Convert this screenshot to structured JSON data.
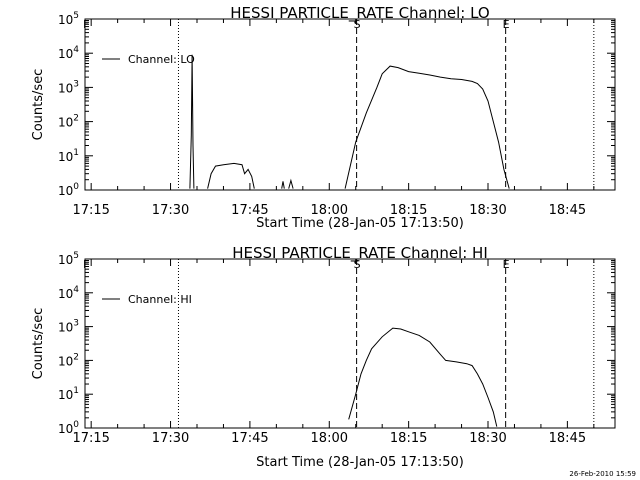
{
  "footer": {
    "timestamp": "26-Feb-2010 15:59"
  },
  "chart_data": [
    {
      "type": "line",
      "title": "HESSI PARTICLE_RATE Channel: LO",
      "xlabel": "Start Time (28-Jan-05 17:13:50)",
      "ylabel": "Counts/sec",
      "x_ticks": [
        "17:15",
        "17:30",
        "17:45",
        "18:00",
        "18:15",
        "18:30",
        "18:45"
      ],
      "y_scale": "log",
      "y_ticks": [
        "10^0",
        "10^1",
        "10^2",
        "10^3",
        "10^4",
        "10^5"
      ],
      "xlim": [
        "17:13:50",
        "18:54:00"
      ],
      "ylim": [
        1,
        100000
      ],
      "legend": {
        "position": "top-left",
        "label": "Channel: LO"
      },
      "markers": [
        {
          "time": "17:31:30",
          "style": "dotted",
          "label": ""
        },
        {
          "time": "18:05:10",
          "style": "dashed",
          "label": "S"
        },
        {
          "time": "18:33:20",
          "style": "dashed",
          "label": "E"
        },
        {
          "time": "18:50:00",
          "style": "dotted",
          "label": ""
        }
      ],
      "corner_label": "F",
      "series": [
        {
          "name": "Channel: LO",
          "segments": [
            [
              [
                "17:33:40",
                1.1
              ],
              [
                "17:33:55",
                40
              ],
              [
                "17:34:05",
                9000
              ],
              [
                "17:34:15",
                20
              ],
              [
                "17:34:25",
                1.1
              ]
            ],
            [
              [
                "17:37:00",
                1.1
              ],
              [
                "17:37:40",
                3
              ],
              [
                "17:38:30",
                5
              ],
              [
                "17:40:00",
                5.5
              ],
              [
                "17:42:00",
                6
              ],
              [
                "17:43:30",
                5.5
              ],
              [
                "17:44:00",
                3
              ],
              [
                "17:44:40",
                4
              ],
              [
                "17:45:20",
                2.5
              ],
              [
                "17:45:50",
                1.1
              ]
            ],
            [
              [
                "17:51:00",
                1.1
              ],
              [
                "17:51:15",
                1.8
              ],
              [
                "17:51:30",
                1.1
              ]
            ],
            [
              [
                "17:52:20",
                1.1
              ],
              [
                "17:52:45",
                1.9
              ],
              [
                "17:53:10",
                1.1
              ]
            ],
            [
              [
                "18:03:00",
                1.1
              ],
              [
                "18:05:00",
                25
              ],
              [
                "18:07:00",
                180
              ],
              [
                "18:09:00",
                1000
              ],
              [
                "18:10:00",
                2500
              ],
              [
                "18:11:30",
                4200
              ],
              [
                "18:13:00",
                3800
              ],
              [
                "18:15:00",
                2900
              ],
              [
                "18:17:00",
                2600
              ],
              [
                "18:19:00",
                2300
              ],
              [
                "18:21:00",
                2000
              ],
              [
                "18:23:00",
                1800
              ],
              [
                "18:25:00",
                1700
              ],
              [
                "18:27:00",
                1500
              ],
              [
                "18:28:00",
                1300
              ],
              [
                "18:29:00",
                900
              ],
              [
                "18:30:00",
                400
              ],
              [
                "18:31:00",
                100
              ],
              [
                "18:32:00",
                25
              ],
              [
                "18:33:00",
                4
              ],
              [
                "18:34:00",
                1.1
              ]
            ]
          ]
        }
      ]
    },
    {
      "type": "line",
      "title": "HESSI PARTICLE_RATE Channel: HI",
      "xlabel": "Start Time (28-Jan-05 17:13:50)",
      "ylabel": "Counts/sec",
      "x_ticks": [
        "17:15",
        "17:30",
        "17:45",
        "18:00",
        "18:15",
        "18:30",
        "18:45"
      ],
      "y_scale": "log",
      "y_ticks": [
        "10^0",
        "10^1",
        "10^2",
        "10^3",
        "10^4",
        "10^5"
      ],
      "xlim": [
        "17:13:50",
        "18:54:00"
      ],
      "ylim": [
        1,
        100000
      ],
      "legend": {
        "position": "top-left",
        "label": "Channel: HI"
      },
      "markers": [
        {
          "time": "17:31:30",
          "style": "dotted",
          "label": ""
        },
        {
          "time": "18:05:10",
          "style": "dashed",
          "label": "S"
        },
        {
          "time": "18:33:20",
          "style": "dashed",
          "label": "E"
        },
        {
          "time": "18:50:00",
          "style": "dotted",
          "label": ""
        }
      ],
      "corner_label": "F",
      "series": [
        {
          "name": "Channel: HI",
          "segments": [
            [
              [
                "18:03:40",
                1.8
              ],
              [
                "18:05:00",
                10
              ],
              [
                "18:06:00",
                40
              ],
              [
                "18:07:00",
                100
              ],
              [
                "18:08:00",
                220
              ],
              [
                "18:10:00",
                500
              ],
              [
                "18:12:00",
                900
              ],
              [
                "18:13:30",
                850
              ],
              [
                "18:15:00",
                700
              ],
              [
                "18:17:00",
                550
              ],
              [
                "18:19:00",
                350
              ],
              [
                "18:21:00",
                150
              ],
              [
                "18:22:00",
                100
              ],
              [
                "18:24:00",
                90
              ],
              [
                "18:26:00",
                80
              ],
              [
                "18:27:00",
                70
              ],
              [
                "18:28:00",
                40
              ],
              [
                "18:29:00",
                20
              ],
              [
                "18:30:00",
                8
              ],
              [
                "18:31:00",
                3
              ],
              [
                "18:31:40",
                1.1
              ]
            ]
          ]
        }
      ]
    }
  ]
}
